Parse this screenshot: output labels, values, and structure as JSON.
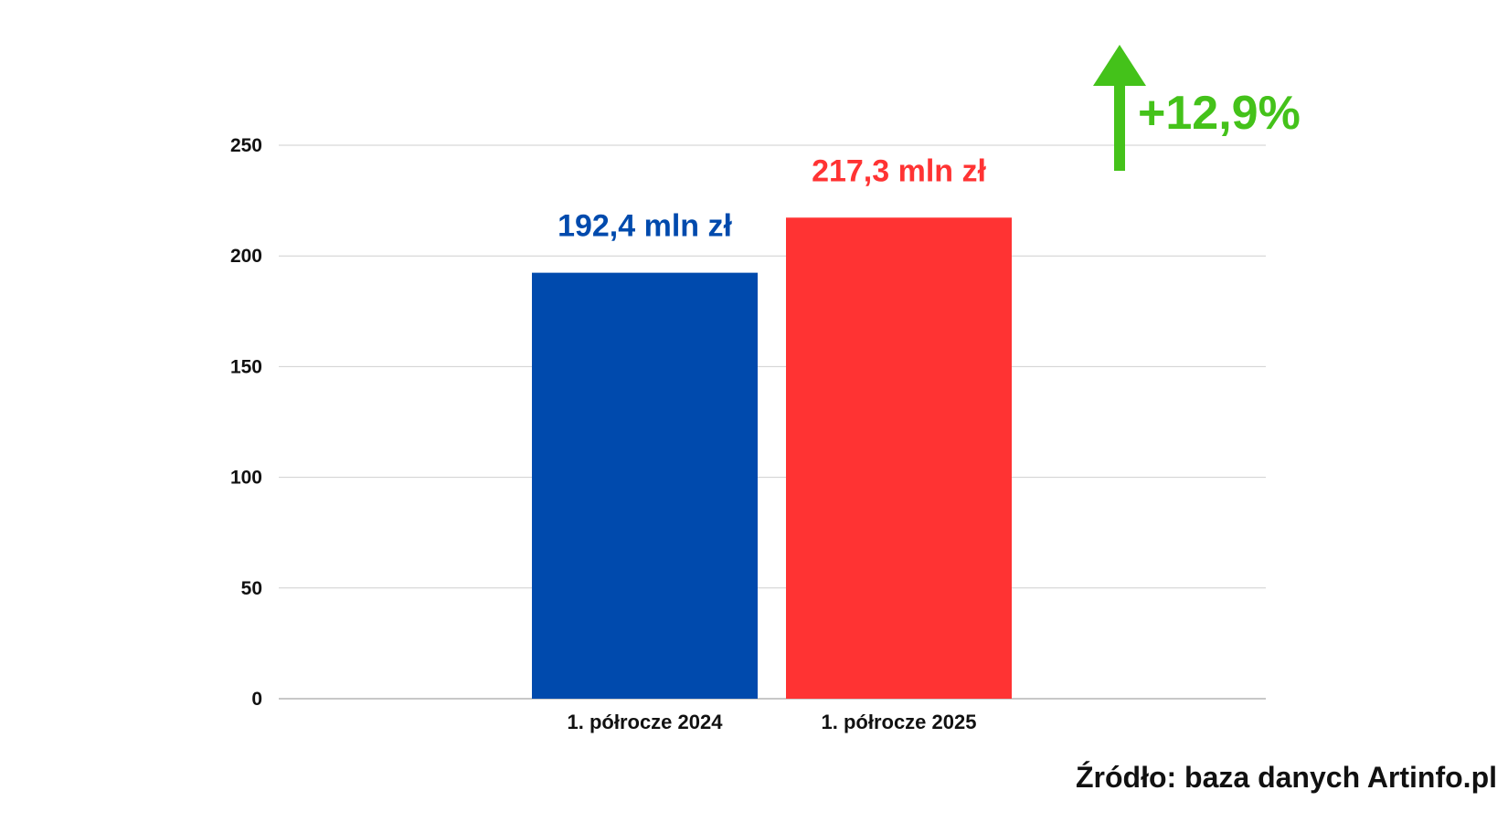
{
  "chart_data": {
    "type": "bar",
    "categories": [
      "1. półrocze 2024",
      "1. półrocze 2025"
    ],
    "values": [
      192.4,
      217.3
    ],
    "data_labels": [
      "192,4 mln zł",
      "217,3 mln zł"
    ],
    "colors": [
      "#004aad",
      "#ff3333"
    ],
    "ylim": [
      0,
      250
    ],
    "yticks": [
      0,
      50,
      100,
      150,
      200,
      250
    ],
    "grid": true,
    "legend": "none"
  },
  "annotation": {
    "change_label": "+12,9%",
    "icon": "arrow-up-icon",
    "color": "#44c21a"
  },
  "source": "Źródło: baza danych Artinfo.pl"
}
